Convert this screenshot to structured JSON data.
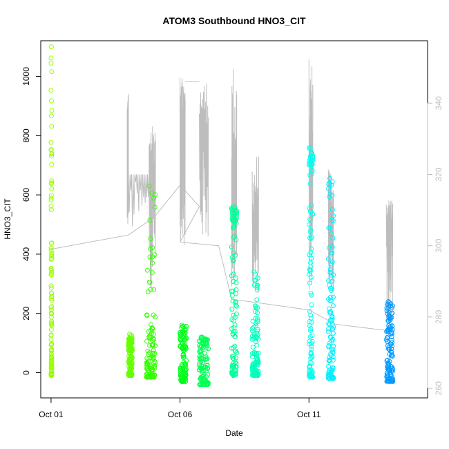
{
  "chart_data": {
    "type": "scatter",
    "title": "ATOM3 Southbound HNO3_CIT",
    "xlabel": "Date",
    "ylabel": "HNO3_CIT",
    "x_ticks": [
      "Oct 01",
      "Oct 06",
      "Oct 11"
    ],
    "x_tick_values": [
      1,
      6,
      11
    ],
    "xlim": [
      0.6,
      15.6
    ],
    "ylim": [
      -85,
      1120
    ],
    "y_ticks": [
      0,
      200,
      400,
      600,
      800,
      1000
    ],
    "y2_ticks": [
      260,
      280,
      300,
      320,
      340
    ],
    "y2lim": [
      257.3,
      357.5
    ],
    "grid": false,
    "series": [
      {
        "type": "scatter",
        "marker": "open-circle",
        "clusters": [
          {
            "x_start": 1.0,
            "x_end": 1.03,
            "y_min": -10,
            "y_max": 1100,
            "y_max_dense": 420,
            "color": "#99ff00"
          },
          {
            "x_start": 4.0,
            "x_end": 4.15,
            "y_min": -10,
            "y_max": 130,
            "y_max_dense": 100,
            "color": "#66ff00"
          },
          {
            "x_start": 4.7,
            "x_end": 5.05,
            "y_min": -15,
            "y_max": 630,
            "y_max_dense": 140,
            "color": "#33ff00"
          },
          {
            "x_start": 6.0,
            "x_end": 6.25,
            "y_min": -30,
            "y_max": 160,
            "y_max_dense": 110,
            "color": "#00ff1a"
          },
          {
            "x_start": 6.75,
            "x_end": 7.1,
            "y_min": -40,
            "y_max": 120,
            "y_max_dense": 90,
            "color": "#00ff55"
          },
          {
            "x_start": 8.0,
            "x_end": 8.2,
            "y_min": -10,
            "y_max": 560,
            "y_max_dense": 510,
            "color": "#00ff99"
          },
          {
            "x_start": 8.8,
            "x_end": 9.05,
            "y_min": -10,
            "y_max": 340,
            "y_max_dense": 140,
            "color": "#00ffbb"
          },
          {
            "x_start": 11.0,
            "x_end": 11.15,
            "y_min": -15,
            "y_max": 760,
            "y_max_dense": 700,
            "color": "#00ffee"
          },
          {
            "x_start": 11.75,
            "x_end": 11.95,
            "y_min": -20,
            "y_max": 655,
            "y_max_dense": 320,
            "color": "#00eeff"
          },
          {
            "x_start": 14.0,
            "x_end": 14.25,
            "y_min": -30,
            "y_max": 240,
            "y_max_dense": 155,
            "color": "#0099ff"
          }
        ]
      },
      {
        "type": "line",
        "axis": "right",
        "color": "#bdbdbd",
        "trend_points": [
          [
            1.0,
            299.0
          ],
          [
            4.0,
            303.0
          ],
          [
            5.0,
            308.0
          ],
          [
            6.0,
            317.0
          ],
          [
            6.75,
            311.0
          ],
          [
            6.0,
            301.0
          ],
          [
            7.5,
            300.0
          ],
          [
            8.0,
            285.0
          ],
          [
            9.0,
            284.0
          ],
          [
            11.0,
            282.0
          ],
          [
            12.0,
            278.0
          ],
          [
            14.25,
            276.0
          ]
        ],
        "flights": [
          {
            "x_start": 3.95,
            "x_end": 4.0,
            "baseline": 321.0,
            "low": 303.0,
            "high": 344.0
          },
          {
            "x_start": 4.0,
            "x_end": 4.8,
            "baseline": 320.0,
            "low": 303.0,
            "high": 320.0
          },
          {
            "x_start": 4.8,
            "x_end": 5.05,
            "baseline": 319.0,
            "low": 288.0,
            "high": 336.0
          },
          {
            "x_start": 6.0,
            "x_end": 6.1,
            "baseline": 326.0,
            "low": 301.0,
            "high": 348.0
          },
          {
            "x_start": 6.1,
            "x_end": 6.2,
            "baseline": 326.0,
            "low": 300.0,
            "high": 348.0
          },
          {
            "x_start": 6.2,
            "x_end": 6.75,
            "baseline": 346.0,
            "low": 346.0,
            "high": 346.0
          },
          {
            "x_start": 6.75,
            "x_end": 7.1,
            "baseline": 330.0,
            "low": 300.0,
            "high": 347.0
          },
          {
            "x_start": 8.0,
            "x_end": 8.2,
            "baseline": 310.0,
            "low": 286.0,
            "high": 352.0
          },
          {
            "x_start": 8.8,
            "x_end": 9.05,
            "baseline": 304.0,
            "low": 286.0,
            "high": 326.0
          },
          {
            "x_start": 11.0,
            "x_end": 11.15,
            "baseline": 314.0,
            "low": 287.0,
            "high": 353.0
          },
          {
            "x_start": 11.75,
            "x_end": 11.95,
            "baseline": 305.0,
            "low": 286.0,
            "high": 322.0
          },
          {
            "x_start": 14.0,
            "x_end": 14.25,
            "baseline": 305.0,
            "low": 276.0,
            "high": 314.0
          }
        ]
      }
    ]
  }
}
